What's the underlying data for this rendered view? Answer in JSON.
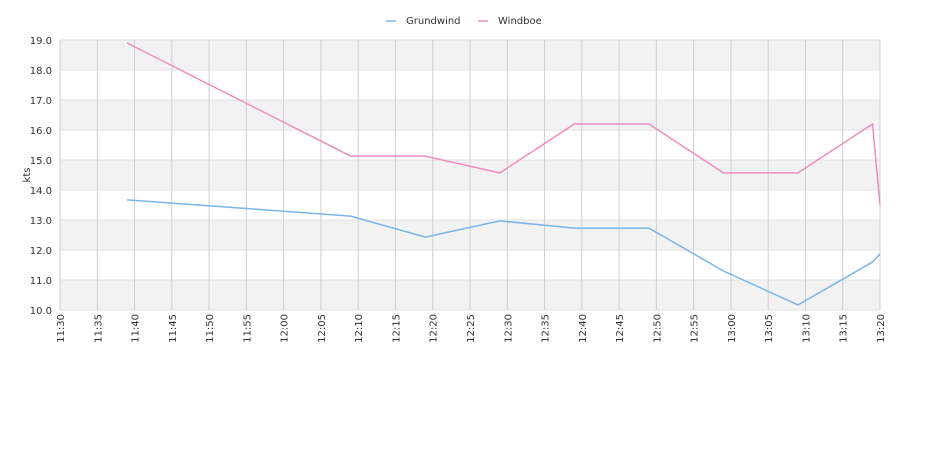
{
  "chart_data": {
    "type": "line",
    "y_label": "kts",
    "x": [
      "11:39",
      "12:09",
      "12:19",
      "12:29",
      "12:39",
      "12:49",
      "12:59",
      "13:09",
      "13:19",
      "13:20"
    ],
    "xlim": [
      "11:30",
      "13:20"
    ],
    "xticks": [
      "11:30",
      "11:35",
      "11:40",
      "11:45",
      "11:50",
      "11:55",
      "12:00",
      "12:05",
      "12:10",
      "12:15",
      "12:20",
      "12:25",
      "12:30",
      "12:35",
      "12:40",
      "12:45",
      "12:50",
      "12:55",
      "13:00",
      "13:05",
      "13:10",
      "13:15",
      "13:20"
    ],
    "ylim": [
      10,
      19
    ],
    "yticks": [
      {
        "value": 10,
        "label": "10.0"
      },
      {
        "value": 11,
        "label": "11.0"
      },
      {
        "value": 12,
        "label": "12.0"
      },
      {
        "value": 13,
        "label": "13.0"
      },
      {
        "value": 14,
        "label": "14.0"
      },
      {
        "value": 15,
        "label": "15.0"
      },
      {
        "value": 16,
        "label": "16.0"
      },
      {
        "value": 17,
        "label": "17.0"
      },
      {
        "value": 18,
        "label": "18.0"
      },
      {
        "value": 19,
        "label": "19.0"
      }
    ],
    "grid": true,
    "legend": "top",
    "series": [
      {
        "name": "Grundwind",
        "color": "#7ab4ea",
        "values": [
          13.67,
          13.13,
          12.43,
          12.97,
          12.73,
          12.73,
          11.3,
          10.17,
          11.6,
          11.87
        ]
      },
      {
        "name": "Windboe",
        "color": "#f08cc0",
        "values": [
          18.9,
          15.13,
          15.13,
          14.57,
          16.2,
          16.2,
          14.57,
          14.57,
          16.2,
          13.5
        ]
      }
    ]
  }
}
